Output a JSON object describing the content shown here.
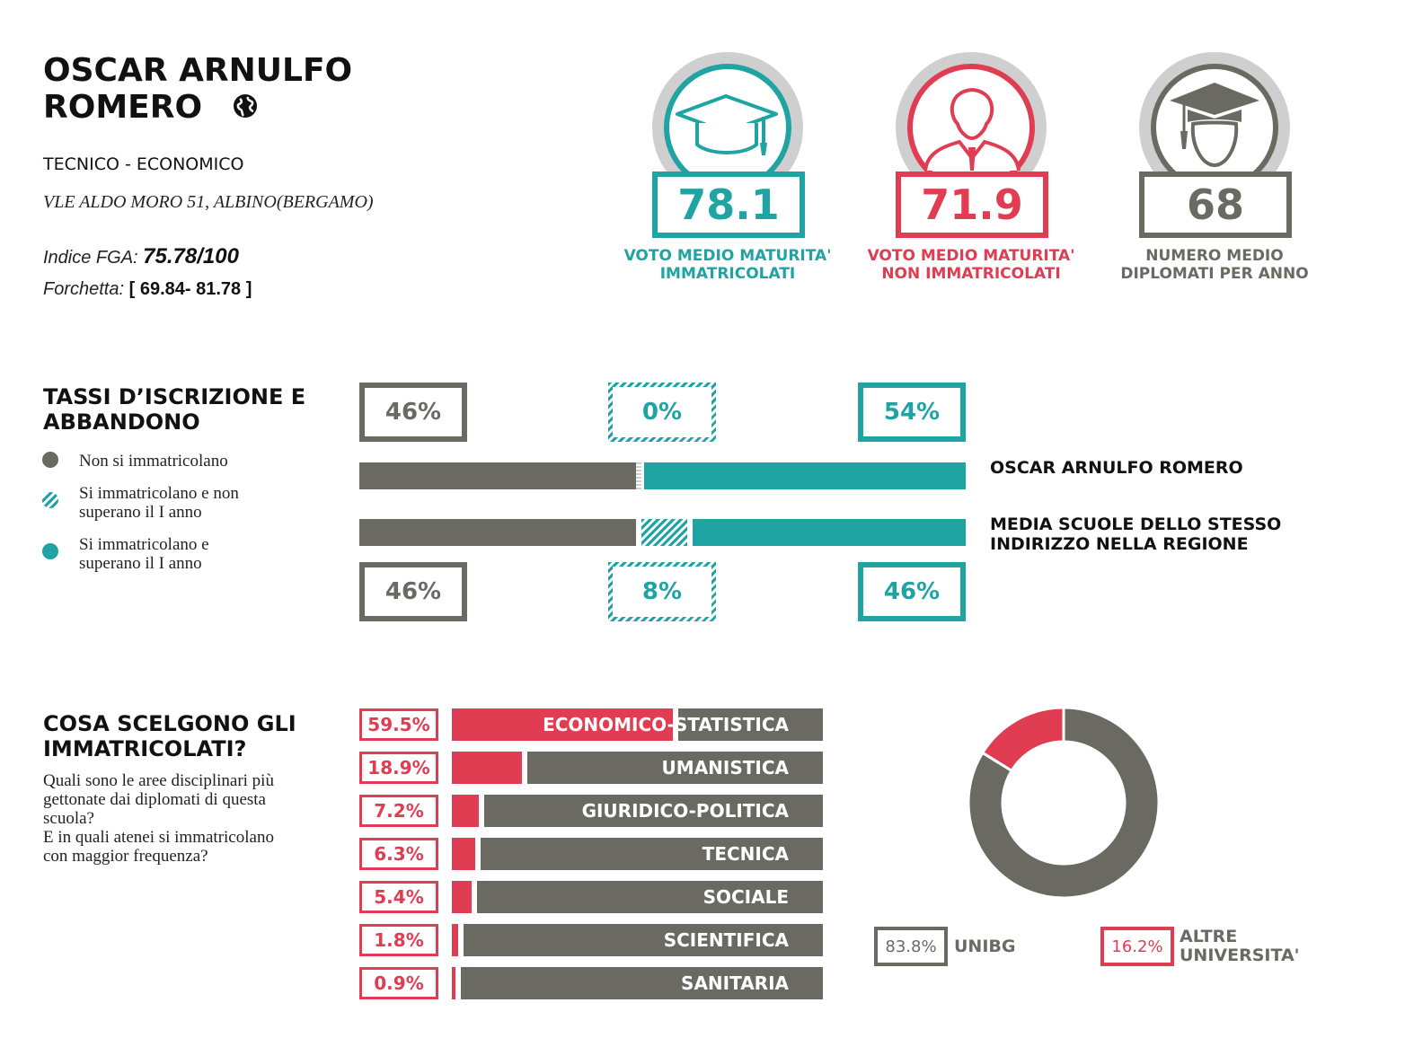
{
  "colors": {
    "teal": "#1fa3a3",
    "red": "#e03c52",
    "gray": "#6b6a62",
    "light_gray": "#cfcfcf"
  },
  "school": {
    "name_line1": "OSCAR ARNULFO",
    "name_line2": "ROMERO",
    "type": "TECNICO - ECONOMICO",
    "address": "VLE ALDO MORO 51, ALBINO(BERGAMO)",
    "fga_label": "Indice FGA:",
    "fga_value": "75.78/100",
    "range_label": "Forchetta:",
    "range_value": "[ 69.84- 81.78 ]",
    "web_icon": "globe-icon"
  },
  "stats": [
    {
      "value": "78.1",
      "label_line1": "VOTO MEDIO MATURITA'",
      "label_line2": "IMMATRICOLATI",
      "icon": "graduation-cap-icon",
      "color": "#1fa3a3"
    },
    {
      "value": "71.9",
      "label_line1": "VOTO MEDIO MATURITA'",
      "label_line2": "NON IMMATRICOLATI",
      "icon": "person-icon",
      "color": "#e03c52"
    },
    {
      "value": "68",
      "label_line1": "NUMERO MEDIO",
      "label_line2": "DIPLOMATI PER ANNO",
      "icon": "graduate-student-icon",
      "color": "#6b6a62"
    }
  ],
  "enrollment": {
    "title_line1": "TASSI D’ISCRIZIONE E",
    "title_line2": "ABBANDONO",
    "legend": [
      {
        "text_line1": "Non si immatricolano",
        "text_line2": ""
      },
      {
        "text_line1": "Si immatricolano e non",
        "text_line2": "superano il I anno"
      },
      {
        "text_line1": "Si immatricolano e",
        "text_line2": "superano il I anno"
      }
    ],
    "rows": [
      {
        "label_line1": "OSCAR ARNULFO ROMERO",
        "label_line2": "",
        "not_enrolled": 46,
        "dropout": 0,
        "passed": 54,
        "not_enrolled_text": "46%",
        "dropout_text": "0%",
        "passed_text": "54%"
      },
      {
        "label_line1": "MEDIA SCUOLE DELLO STESSO",
        "label_line2": "INDIRIZZO NELLA REGIONE",
        "not_enrolled": 46,
        "dropout": 8,
        "passed": 46,
        "not_enrolled_text": "46%",
        "dropout_text": "8%",
        "passed_text": "46%"
      }
    ]
  },
  "choices": {
    "title_line1": "COSA SCELGONO GLI",
    "title_line2": "IMMATRICOLATI?",
    "desc_lines": [
      "Quali sono le aree disciplinari più",
      "gettonate dai diplomati di questa",
      "scuola?",
      "E in quali atenei si immatricolano",
      "con maggior frequenza?"
    ],
    "areas": [
      {
        "name": "ECONOMICO-STATISTICA",
        "value": 59.5,
        "pct_text": "59.5%"
      },
      {
        "name": "UMANISTICA",
        "value": 18.9,
        "pct_text": "18.9%"
      },
      {
        "name": "GIURIDICO-POLITICA",
        "value": 7.2,
        "pct_text": "7.2%"
      },
      {
        "name": "TECNICA",
        "value": 6.3,
        "pct_text": "6.3%"
      },
      {
        "name": "SOCIALE",
        "value": 5.4,
        "pct_text": "5.4%"
      },
      {
        "name": "SCIENTIFICA",
        "value": 1.8,
        "pct_text": "1.8%"
      },
      {
        "name": "SANITARIA",
        "value": 0.9,
        "pct_text": "0.9%"
      }
    ]
  },
  "chart_data": {
    "type": "pie",
    "labels": [
      "UNIBG",
      "ALTRE UNIVERSITA'"
    ],
    "values": [
      83.8,
      16.2
    ],
    "colors": [
      "#6b6a62",
      "#e03c52"
    ],
    "legend": [
      {
        "pct_text": "83.8%",
        "label_line1": "UNIBG",
        "label_line2": ""
      },
      {
        "pct_text": "16.2%",
        "label_line1": "ALTRE",
        "label_line2": "UNIVERSITA'"
      }
    ]
  }
}
